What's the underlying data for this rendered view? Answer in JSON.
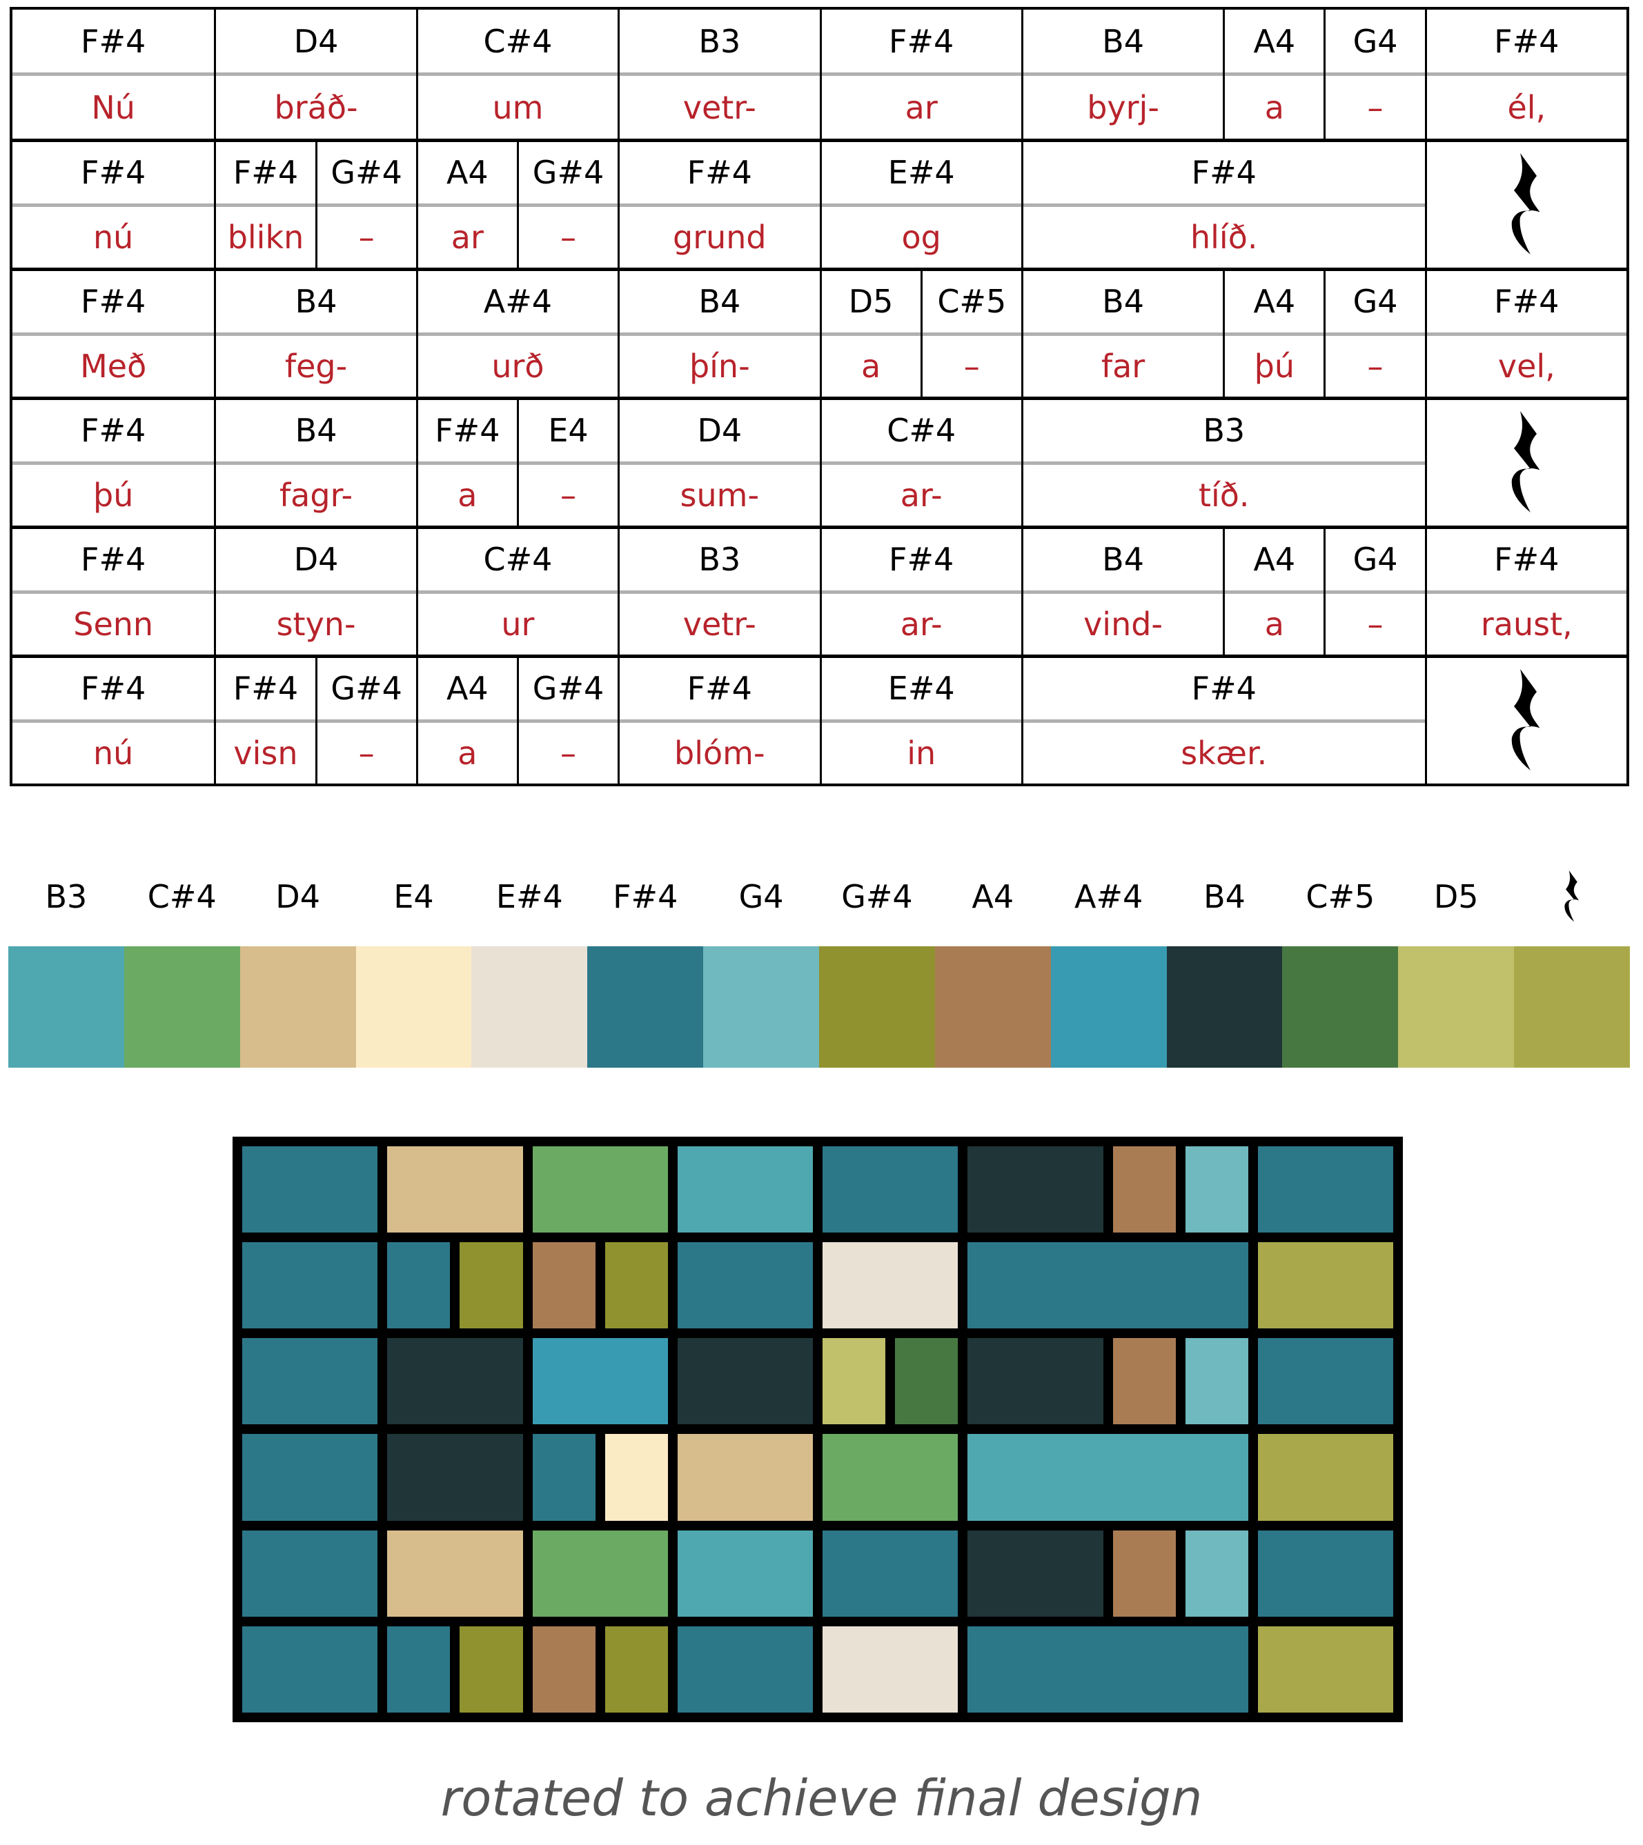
{
  "colors": {
    "B3": "#4fa8b0",
    "C#4": "#6aaa62",
    "D4": "#d8bd8c",
    "E4": "#fbebc5",
    "E#4": "#e9e1d4",
    "F#4": "#2c7889",
    "G4": "#6fb9bf",
    "G#4": "#90922f",
    "A4": "#aa7c54",
    "A#4": "#389bb2",
    "B4": "#1f3538",
    "C#5": "#477841",
    "D5": "#c1c06b",
    "rest": "#a9a94b"
  },
  "legend": [
    "B3",
    "C#4",
    "D4",
    "E4",
    "E#4",
    "F#4",
    "G4",
    "G#4",
    "A4",
    "A#4",
    "B4",
    "C#5",
    "D5",
    "rest"
  ],
  "rows": [
    [
      [
        "F#4",
        "Nú",
        2
      ],
      [
        "D4",
        "bráð-",
        2
      ],
      [
        "C#4",
        "um",
        2
      ],
      [
        "B3",
        "vetr-",
        2
      ],
      [
        "F#4",
        "ar",
        2
      ],
      [
        "B4",
        "byrj-",
        2
      ],
      [
        "A4",
        "a",
        1
      ],
      [
        "G4",
        "–",
        1
      ],
      [
        "F#4",
        "él,",
        2
      ]
    ],
    [
      [
        "F#4",
        "nú",
        2
      ],
      [
        "F#4",
        "blikn",
        1
      ],
      [
        "G#4",
        "–",
        1
      ],
      [
        "A4",
        "ar",
        1
      ],
      [
        "G#4",
        "–",
        1
      ],
      [
        "F#4",
        "grund",
        2
      ],
      [
        "E#4",
        "og",
        2
      ],
      [
        "F#4",
        "hlíð.",
        4
      ],
      [
        "rest",
        "",
        2
      ]
    ],
    [
      [
        "F#4",
        "Með",
        2
      ],
      [
        "B4",
        "feg-",
        2
      ],
      [
        "A#4",
        "urð",
        2
      ],
      [
        "B4",
        "þín-",
        2
      ],
      [
        "D5",
        "a",
        1
      ],
      [
        "C#5",
        "–",
        1
      ],
      [
        "B4",
        "far",
        2
      ],
      [
        "A4",
        "þú",
        1
      ],
      [
        "G4",
        "–",
        1
      ],
      [
        "F#4",
        "vel,",
        2
      ]
    ],
    [
      [
        "F#4",
        "þú",
        2
      ],
      [
        "B4",
        "fagr-",
        2
      ],
      [
        "F#4",
        "a",
        1
      ],
      [
        "E4",
        "–",
        1
      ],
      [
        "D4",
        "sum-",
        2
      ],
      [
        "C#4",
        "ar-",
        2
      ],
      [
        "B3",
        "tíð.",
        4
      ],
      [
        "rest",
        "",
        2
      ]
    ],
    [
      [
        "F#4",
        "Senn",
        2
      ],
      [
        "D4",
        "styn-",
        2
      ],
      [
        "C#4",
        "ur",
        2
      ],
      [
        "B3",
        "vetr-",
        2
      ],
      [
        "F#4",
        "ar-",
        2
      ],
      [
        "B4",
        "vind-",
        2
      ],
      [
        "A4",
        "a",
        1
      ],
      [
        "G4",
        "–",
        1
      ],
      [
        "F#4",
        "raust,",
        2
      ]
    ],
    [
      [
        "F#4",
        "nú",
        2
      ],
      [
        "F#4",
        "visn",
        1
      ],
      [
        "G#4",
        "–",
        1
      ],
      [
        "A4",
        "a",
        1
      ],
      [
        "G#4",
        "–",
        1
      ],
      [
        "F#4",
        "blóm-",
        2
      ],
      [
        "E#4",
        "in",
        2
      ],
      [
        "F#4",
        "skær.",
        4
      ],
      [
        "rest",
        "",
        2
      ]
    ]
  ],
  "caption": "rotated to achieve final design"
}
